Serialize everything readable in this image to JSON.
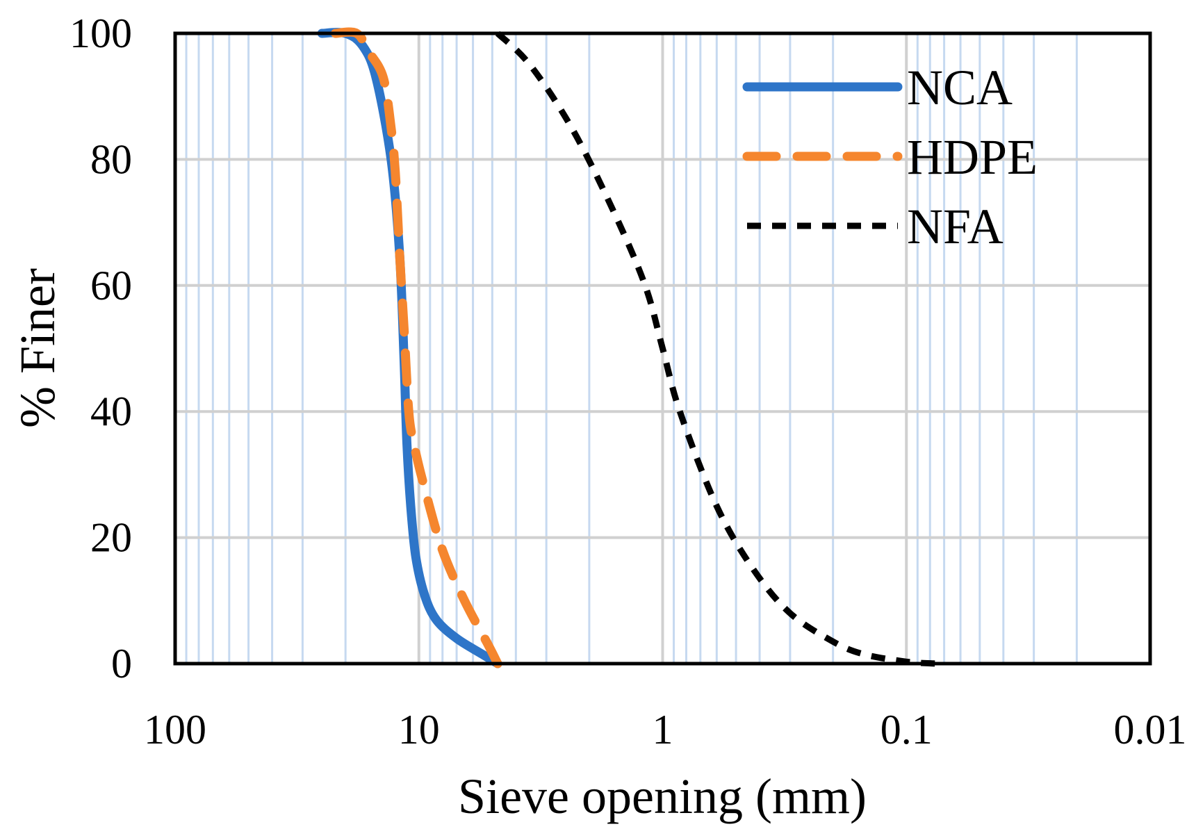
{
  "chart_data": {
    "type": "line",
    "title": "",
    "xlabel": "Sieve opening (mm)",
    "ylabel": "% Finer",
    "xscale": "log",
    "x_reversed": true,
    "xlim": [
      100,
      0.01
    ],
    "ylim": [
      0,
      100
    ],
    "x_ticks": [
      {
        "value": 100,
        "label": "100"
      },
      {
        "value": 10,
        "label": "10"
      },
      {
        "value": 1,
        "label": "1"
      },
      {
        "value": 0.1,
        "label": "0.1"
      },
      {
        "value": 0.01,
        "label": "0.01"
      }
    ],
    "y_ticks": [
      {
        "value": 0,
        "label": "0"
      },
      {
        "value": 20,
        "label": "20"
      },
      {
        "value": 40,
        "label": "40"
      },
      {
        "value": 60,
        "label": "60"
      },
      {
        "value": 80,
        "label": "80"
      },
      {
        "value": 100,
        "label": "100"
      }
    ],
    "grid": true,
    "legend_position": "top-right",
    "series": [
      {
        "name": "NCA",
        "color": "#2E75C8",
        "style": "solid",
        "points": [
          [
            25,
            100
          ],
          [
            20,
            100
          ],
          [
            17,
            98
          ],
          [
            15,
            93
          ],
          [
            13,
            80
          ],
          [
            12,
            65
          ],
          [
            11.5,
            48
          ],
          [
            11.2,
            35
          ],
          [
            10.8,
            25
          ],
          [
            10.3,
            17
          ],
          [
            9.5,
            11
          ],
          [
            8.5,
            7
          ],
          [
            7,
            4
          ],
          [
            5.5,
            1.5
          ],
          [
            4.75,
            0
          ]
        ]
      },
      {
        "name": "HDPE",
        "color": "#F5862E",
        "style": "dashed",
        "points": [
          [
            22,
            100
          ],
          [
            18,
            100
          ],
          [
            16,
            97
          ],
          [
            14,
            93
          ],
          [
            13,
            85
          ],
          [
            12.5,
            78
          ],
          [
            12,
            65
          ],
          [
            11.5,
            53
          ],
          [
            11,
            40
          ],
          [
            10.5,
            35
          ],
          [
            9.5,
            28
          ],
          [
            8,
            18
          ],
          [
            6.5,
            10
          ],
          [
            5.2,
            3
          ],
          [
            4.75,
            0
          ]
        ]
      },
      {
        "name": "NFA",
        "color": "#000000",
        "style": "dotted",
        "points": [
          [
            4.75,
            100
          ],
          [
            3.5,
            95
          ],
          [
            2.36,
            85
          ],
          [
            1.6,
            72
          ],
          [
            1.18,
            60
          ],
          [
            1,
            50
          ],
          [
            0.85,
            40
          ],
          [
            0.6,
            25
          ],
          [
            0.425,
            15
          ],
          [
            0.3,
            8
          ],
          [
            0.2,
            3.5
          ],
          [
            0.15,
            1.5
          ],
          [
            0.1,
            0.3
          ],
          [
            0.075,
            0
          ]
        ]
      }
    ]
  }
}
